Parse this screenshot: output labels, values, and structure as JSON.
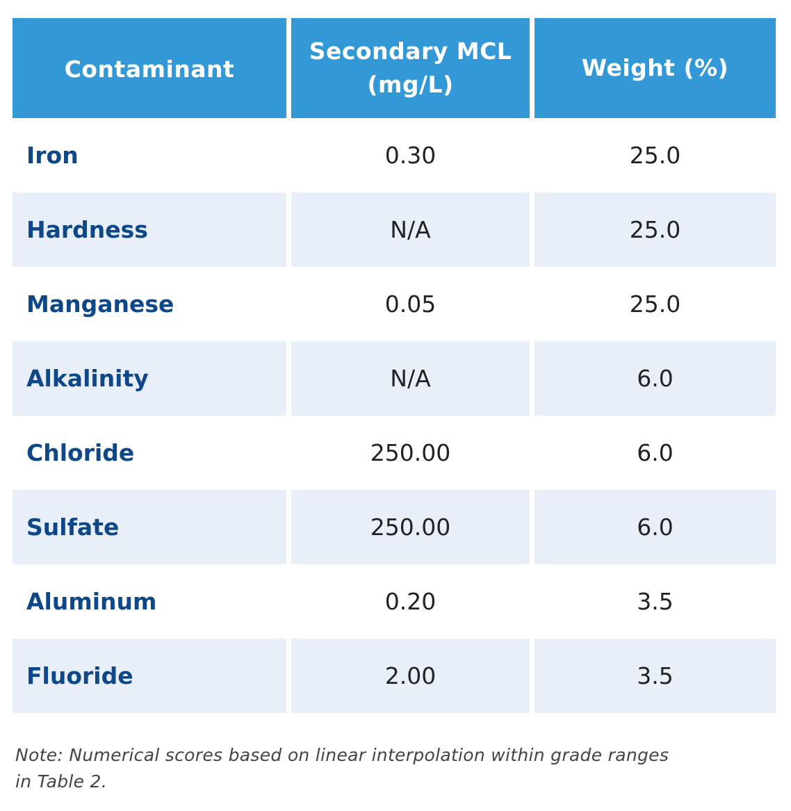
{
  "table": {
    "headers": {
      "contaminant": "Contaminant",
      "mcl": "Secondary MCL (mg/L)",
      "weight": "Weight (%)"
    },
    "rows": [
      {
        "contaminant": "Iron",
        "mcl": "0.30",
        "weight": "25.0"
      },
      {
        "contaminant": "Hardness",
        "mcl": "N/A",
        "weight": "25.0"
      },
      {
        "contaminant": "Manganese",
        "mcl": "0.05",
        "weight": "25.0"
      },
      {
        "contaminant": "Alkalinity",
        "mcl": "N/A",
        "weight": "6.0"
      },
      {
        "contaminant": "Chloride",
        "mcl": "250.00",
        "weight": "6.0"
      },
      {
        "contaminant": "Sulfate",
        "mcl": "250.00",
        "weight": "6.0"
      },
      {
        "contaminant": "Aluminum",
        "mcl": "0.20",
        "weight": "3.5"
      },
      {
        "contaminant": "Fluoride",
        "mcl": "2.00",
        "weight": "3.5"
      }
    ]
  },
  "note": "Note: Numerical scores based on linear interpolation within grade ranges in Table 2.",
  "colors": {
    "header_bg": "#3399d6",
    "header_text": "#ffffff",
    "row_shade": "#e8eff8",
    "name_text": "#0f4888",
    "value_text": "#222222"
  }
}
